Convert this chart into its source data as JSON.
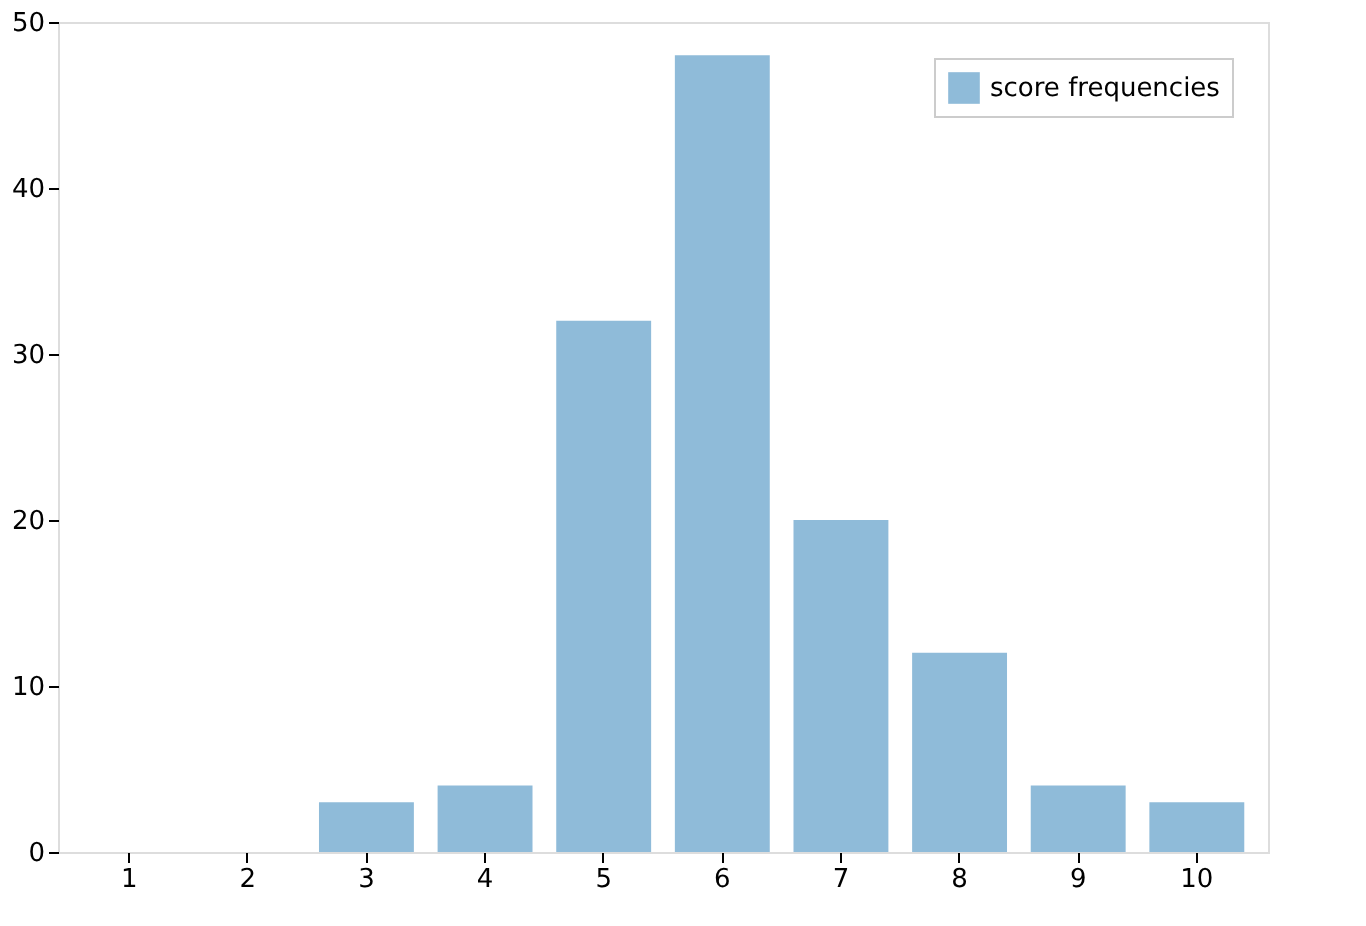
{
  "chart_data": {
    "type": "bar",
    "categories": [
      "1",
      "2",
      "3",
      "4",
      "5",
      "6",
      "7",
      "8",
      "9",
      "10"
    ],
    "series": [
      {
        "name": "score frequencies",
        "color": "#8fbbd9",
        "values": [
          0,
          0,
          3,
          4,
          32,
          48,
          20,
          12,
          4,
          3
        ]
      }
    ],
    "ylim": [
      0,
      50
    ],
    "yticks": [
      0,
      10,
      20,
      30,
      40,
      50
    ],
    "grid": false,
    "legend": "top right"
  }
}
